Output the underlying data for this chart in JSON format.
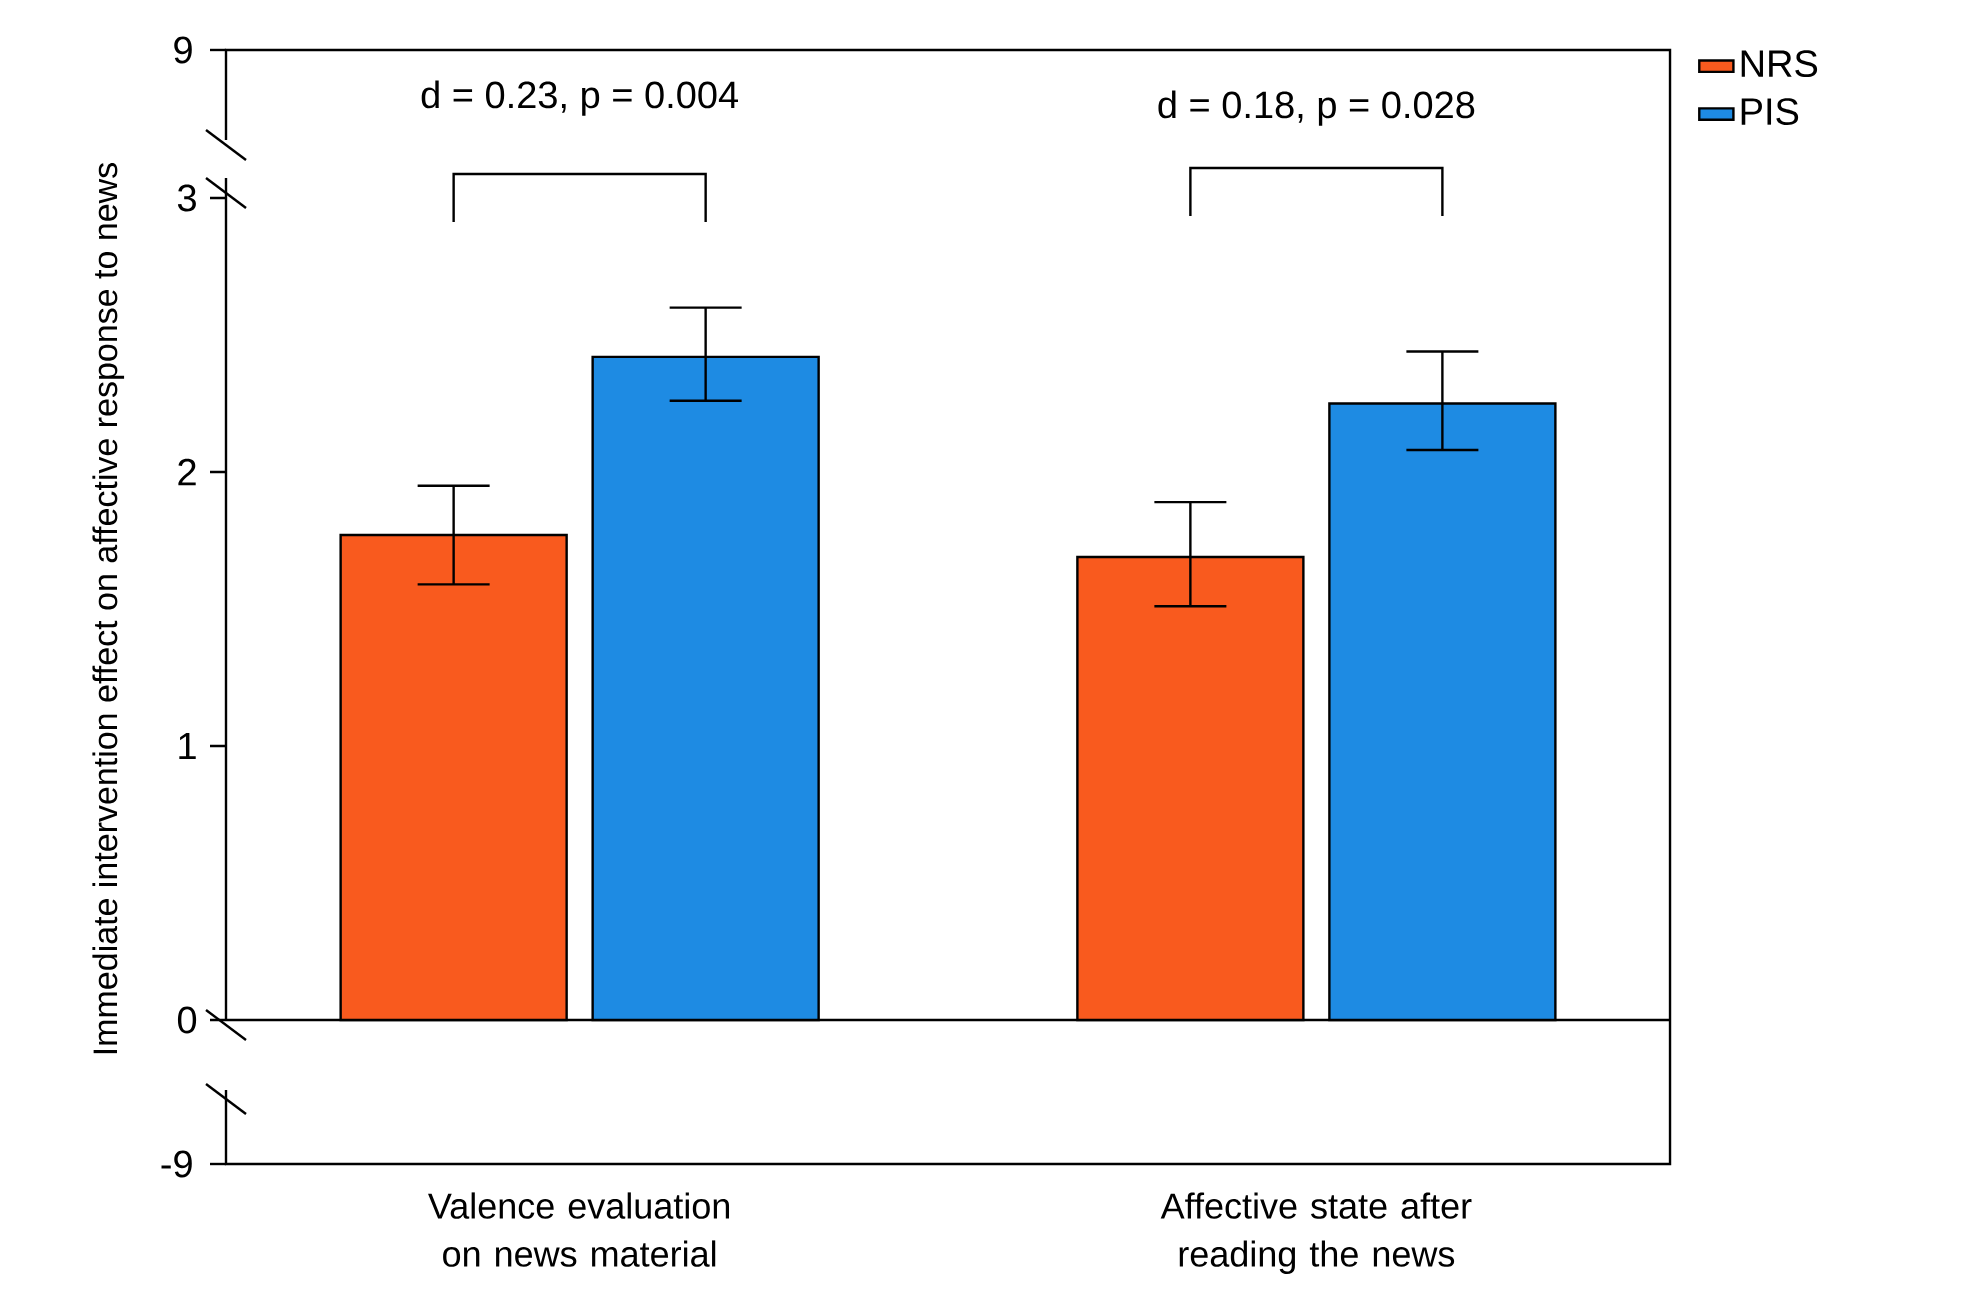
{
  "chart_data": {
    "type": "bar",
    "ylabel": "Immediate intervention effect on affective response to news",
    "categories": [
      "Valence evaluation on news material",
      "Affective state after reading the news"
    ],
    "series": [
      {
        "name": "NRS",
        "color": "#f95a1e",
        "values": [
          1.77,
          1.69
        ],
        "errors": [
          [
            1.59,
            1.95
          ],
          [
            1.51,
            1.89
          ]
        ]
      },
      {
        "name": "PIS",
        "color": "#1e8be3",
        "values": [
          2.42,
          2.25
        ],
        "errors": [
          [
            2.26,
            2.6
          ],
          [
            2.08,
            2.44
          ]
        ]
      }
    ],
    "ylim": [
      0,
      3
    ],
    "yticks": [
      0,
      1,
      2,
      3
    ],
    "legend": "right",
    "annotations": [
      "d = 0.23, p = 0.004",
      "d = 0.18, p = 0.028",
      "9",
      "-9"
    ]
  }
}
